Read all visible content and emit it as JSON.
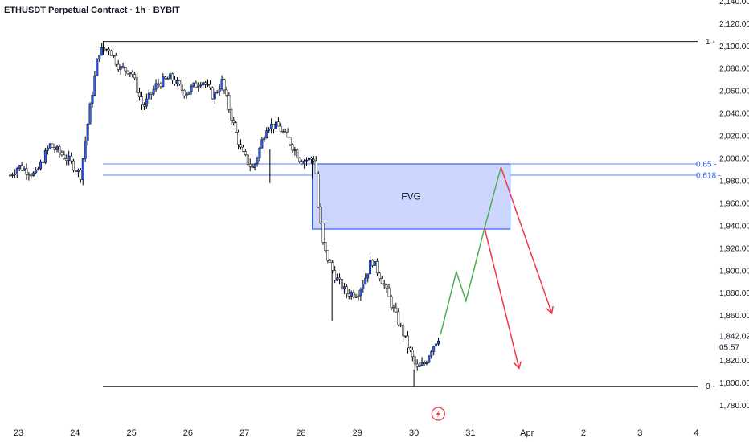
{
  "header": {
    "title": "ETHUSDT Perpetual Contract · 1h · BYBIT"
  },
  "colors": {
    "up_body": "#2962ff",
    "down_body": "#ffffff",
    "wick": "#000000",
    "fvg_fill": "#ccd6ff",
    "fvg_border": "#2962ff",
    "fib_line": "#5b8ef5",
    "green_path": "#4caf50",
    "red_path": "#f23645",
    "level_line": "#131722"
  },
  "icons": {
    "event_marker": "lightning-icon"
  },
  "chart_data": {
    "type": "candlestick",
    "title": "ETHUSDT Perpetual Contract · 1h · BYBIT",
    "ylim": [
      1772,
      2144
    ],
    "y_ticks": [
      {
        "value": 2140,
        "label": "2,140.00"
      },
      {
        "value": 2120,
        "label": "2,120.00"
      },
      {
        "value": 2100,
        "label": "2,100.00"
      },
      {
        "value": 2080,
        "label": "2,080.00"
      },
      {
        "value": 2060,
        "label": "2,060.00"
      },
      {
        "value": 2040,
        "label": "2,040.00"
      },
      {
        "value": 2020,
        "label": "2,020.00"
      },
      {
        "value": 2000,
        "label": "2,000.00"
      },
      {
        "value": 1980,
        "label": "1,980.00"
      },
      {
        "value": 1960,
        "label": "1,960.00"
      },
      {
        "value": 1940,
        "label": "1,940.00"
      },
      {
        "value": 1920,
        "label": "1,920.00"
      },
      {
        "value": 1900,
        "label": "1,900.00"
      },
      {
        "value": 1880,
        "label": "1,880.00"
      },
      {
        "value": 1860,
        "label": "1,860.00"
      },
      {
        "value": 1820,
        "label": "1,820.00"
      },
      {
        "value": 1800,
        "label": "1,800.00"
      },
      {
        "value": 1780,
        "label": "1,780.00"
      }
    ],
    "x_ticks": [
      {
        "day": 0,
        "label": "23"
      },
      {
        "day": 1,
        "label": "24"
      },
      {
        "day": 2,
        "label": "25"
      },
      {
        "day": 3,
        "label": "26"
      },
      {
        "day": 4,
        "label": "27"
      },
      {
        "day": 5,
        "label": "28"
      },
      {
        "day": 6,
        "label": "29"
      },
      {
        "day": 7,
        "label": "30"
      },
      {
        "day": 8,
        "label": "31"
      },
      {
        "day": 9,
        "label": "Apr"
      },
      {
        "day": 10,
        "label": "2"
      },
      {
        "day": 11,
        "label": "3"
      },
      {
        "day": 12,
        "label": "4"
      }
    ],
    "last_price": {
      "value": 1842.02,
      "label": "1,842.02",
      "countdown": "05:57"
    },
    "levels": [
      {
        "name": "fib-1",
        "label": "1",
        "value": 2104
      },
      {
        "name": "fib-0",
        "label": "0",
        "value": 1797
      }
    ],
    "fib_levels": [
      {
        "label": "0.65",
        "value": 1995
      },
      {
        "label": "0.618",
        "value": 1985
      }
    ],
    "fvg": {
      "label": "FVG",
      "start_day": 5.2,
      "end_day": 8.7,
      "top": 1995,
      "bottom": 1937
    },
    "projection_green": [
      {
        "day": 7.47,
        "value": 1843
      },
      {
        "day": 7.75,
        "value": 1899
      },
      {
        "day": 7.92,
        "value": 1873
      },
      {
        "day": 8.25,
        "value": 1938
      },
      {
        "day": 8.54,
        "value": 1992
      }
    ],
    "projection_red": [
      [
        {
          "day": 8.25,
          "value": 1938
        },
        {
          "day": 8.86,
          "value": 1813
        }
      ],
      [
        {
          "day": 8.54,
          "value": 1992
        },
        {
          "day": 9.44,
          "value": 1862
        }
      ]
    ],
    "candles_daily_path": [
      {
        "day": -0.15,
        "value": 1985
      },
      {
        "day": 0,
        "value": 1993
      },
      {
        "day": 0.3,
        "value": 1985
      },
      {
        "day": 0.55,
        "value": 2012
      },
      {
        "day": 0.9,
        "value": 1998
      },
      {
        "day": 1.1,
        "value": 1985
      },
      {
        "day": 1.25,
        "value": 2040
      },
      {
        "day": 1.42,
        "value": 2095
      },
      {
        "day": 1.6,
        "value": 2098
      },
      {
        "day": 1.8,
        "value": 2080
      },
      {
        "day": 2.0,
        "value": 2078
      },
      {
        "day": 2.2,
        "value": 2045
      },
      {
        "day": 2.45,
        "value": 2066
      },
      {
        "day": 2.7,
        "value": 2072
      },
      {
        "day": 2.95,
        "value": 2058
      },
      {
        "day": 3.25,
        "value": 2070
      },
      {
        "day": 3.45,
        "value": 2055
      },
      {
        "day": 3.6,
        "value": 2068
      },
      {
        "day": 3.75,
        "value": 2040
      },
      {
        "day": 3.95,
        "value": 2005
      },
      {
        "day": 4.15,
        "value": 1990
      },
      {
        "day": 4.4,
        "value": 2030
      },
      {
        "day": 4.6,
        "value": 2028
      },
      {
        "day": 4.8,
        "value": 2015
      },
      {
        "day": 5.0,
        "value": 1998
      },
      {
        "day": 5.25,
        "value": 2000
      },
      {
        "day": 5.3,
        "value": 1960
      },
      {
        "day": 5.4,
        "value": 1920
      },
      {
        "day": 5.6,
        "value": 1895
      },
      {
        "day": 5.8,
        "value": 1880
      },
      {
        "day": 6.0,
        "value": 1880
      },
      {
        "day": 6.15,
        "value": 1895
      },
      {
        "day": 6.25,
        "value": 1910
      },
      {
        "day": 6.45,
        "value": 1890
      },
      {
        "day": 6.6,
        "value": 1870
      },
      {
        "day": 6.8,
        "value": 1845
      },
      {
        "day": 6.95,
        "value": 1825
      },
      {
        "day": 7.05,
        "value": 1812
      },
      {
        "day": 7.2,
        "value": 1818
      },
      {
        "day": 7.3,
        "value": 1830
      },
      {
        "day": 7.45,
        "value": 1842
      }
    ]
  }
}
